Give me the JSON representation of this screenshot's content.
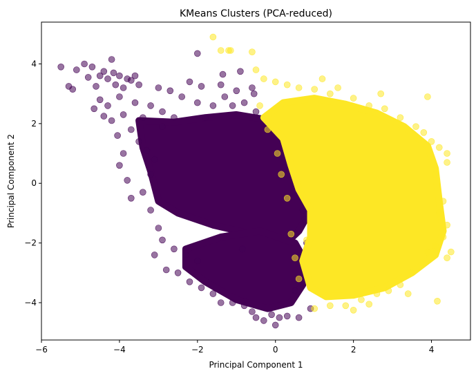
{
  "chart_data": {
    "type": "scatter",
    "title": "KMeans Clusters (PCA-reduced)",
    "xlabel": "Principal Component 1",
    "ylabel": "Principal Component 2",
    "xlim": [
      -6,
      5
    ],
    "ylim": [
      -5.25,
      5.4
    ],
    "xticks": [
      -6,
      -4,
      -2,
      0,
      2,
      4
    ],
    "yticks": [
      -4,
      -2,
      0,
      2,
      4
    ],
    "xtick_labels": [
      "−6",
      "−4",
      "−2",
      "0",
      "2",
      "4"
    ],
    "ytick_labels": [
      "−4",
      "−2",
      "0",
      "2",
      "4"
    ],
    "grid": false,
    "legend": "none",
    "marker_alpha": 0.55,
    "series": [
      {
        "color": "#440154",
        "points": [
          [
            -5.5,
            3.9
          ],
          [
            -5.3,
            3.25
          ],
          [
            -5.2,
            3.15
          ],
          [
            -5.1,
            3.8
          ],
          [
            -4.9,
            4.0
          ],
          [
            -4.8,
            3.55
          ],
          [
            -4.7,
            3.9
          ],
          [
            -4.6,
            3.25
          ],
          [
            -4.5,
            3.6
          ],
          [
            -4.4,
            3.75
          ],
          [
            -4.3,
            3.5
          ],
          [
            -4.2,
            4.15
          ],
          [
            -4.15,
            3.7
          ],
          [
            -4.1,
            3.3
          ],
          [
            -4.0,
            3.6
          ],
          [
            -3.9,
            3.2
          ],
          [
            -3.8,
            3.5
          ],
          [
            -3.7,
            3.45
          ],
          [
            -3.6,
            3.6
          ],
          [
            -3.5,
            3.3
          ],
          [
            -4.65,
            2.5
          ],
          [
            -4.5,
            2.8
          ],
          [
            -4.4,
            2.25
          ],
          [
            -4.3,
            2.6
          ],
          [
            -4.2,
            2.1
          ],
          [
            -4.05,
            1.6
          ],
          [
            -4.0,
            2.9
          ],
          [
            -3.9,
            2.3
          ],
          [
            -3.7,
            1.8
          ],
          [
            -3.6,
            2.7
          ],
          [
            -3.5,
            1.4
          ],
          [
            -3.4,
            2.2
          ],
          [
            -3.3,
            1.1
          ],
          [
            -3.2,
            2.6
          ],
          [
            -3.1,
            0.8
          ],
          [
            -3.0,
            3.2
          ],
          [
            -2.9,
            2.4
          ],
          [
            -2.7,
            3.1
          ],
          [
            -2.6,
            2.2
          ],
          [
            -2.4,
            2.9
          ],
          [
            -2.2,
            3.4
          ],
          [
            -2.0,
            2.7
          ],
          [
            -1.9,
            3.25
          ],
          [
            -1.8,
            2.2
          ],
          [
            -1.6,
            2.6
          ],
          [
            -1.4,
            3.3
          ],
          [
            -1.3,
            2.9
          ],
          [
            -1.1,
            2.6
          ],
          [
            -1.0,
            3.1
          ],
          [
            -0.8,
            2.7
          ],
          [
            -0.6,
            3.2
          ],
          [
            -0.5,
            2.4
          ],
          [
            -2.0,
            4.35
          ],
          [
            -1.35,
            3.65
          ],
          [
            -0.9,
            3.75
          ],
          [
            -0.55,
            3.0
          ],
          [
            -4.0,
            0.6
          ],
          [
            -3.8,
            0.1
          ],
          [
            -3.7,
            -0.5
          ],
          [
            -3.9,
            1.0
          ],
          [
            -3.4,
            -0.3
          ],
          [
            -3.2,
            -0.9
          ],
          [
            -3.0,
            -1.5
          ],
          [
            -2.9,
            -1.9
          ],
          [
            -2.6,
            -2.2
          ],
          [
            -2.3,
            -2.4
          ],
          [
            -2.0,
            -2.6
          ],
          [
            -3.1,
            -2.4
          ],
          [
            -2.8,
            -2.9
          ],
          [
            -2.5,
            -3.0
          ],
          [
            -2.2,
            -3.3
          ],
          [
            -1.9,
            -3.5
          ],
          [
            -1.6,
            -3.7
          ],
          [
            -1.4,
            -4.0
          ],
          [
            -1.1,
            -4.0
          ],
          [
            -0.8,
            -4.1
          ],
          [
            -0.6,
            -4.3
          ],
          [
            -0.5,
            -4.5
          ],
          [
            -0.3,
            -4.6
          ],
          [
            -0.1,
            -4.4
          ],
          [
            0.1,
            -4.5
          ],
          [
            0.3,
            -4.45
          ],
          [
            0.6,
            -4.5
          ],
          [
            0.0,
            -4.75
          ],
          [
            -0.85,
            -2.2
          ],
          [
            0.95,
            -0.5
          ],
          [
            0.7,
            -0.9
          ],
          [
            0.4,
            0.8
          ],
          [
            0.2,
            1.6
          ],
          [
            -0.2,
            2.1
          ],
          [
            0.8,
            -2.0
          ],
          [
            0.75,
            -1.2
          ],
          [
            0.5,
            -3.6
          ],
          [
            0.9,
            -4.2
          ],
          [
            -2.9,
            1.9
          ],
          [
            -3.2,
            0.3
          ]
        ],
        "blobs": [
          [
            [
              -3.5,
              2.1
            ],
            [
              -2.6,
              2.05
            ],
            [
              -1.8,
              2.2
            ],
            [
              -1.0,
              2.3
            ],
            [
              -0.3,
              2.15
            ],
            [
              0.2,
              1.5
            ],
            [
              0.4,
              0.6
            ],
            [
              0.6,
              -0.2
            ],
            [
              0.9,
              -0.9
            ],
            [
              0.6,
              -1.6
            ],
            [
              0.2,
              -2.1
            ],
            [
              -0.6,
              -1.7
            ],
            [
              -1.6,
              -1.4
            ],
            [
              -2.5,
              -1.0
            ],
            [
              -3.0,
              -0.6
            ],
            [
              -3.2,
              0.4
            ],
            [
              -3.4,
              1.2
            ]
          ],
          [
            [
              -2.3,
              -2.2
            ],
            [
              -1.4,
              -1.8
            ],
            [
              -0.4,
              -1.6
            ],
            [
              0.5,
              -2.0
            ],
            [
              0.8,
              -2.7
            ],
            [
              0.7,
              -3.4
            ],
            [
              0.4,
              -4.0
            ],
            [
              -0.2,
              -4.2
            ],
            [
              -1.0,
              -3.9
            ],
            [
              -1.8,
              -3.3
            ],
            [
              -2.3,
              -2.8
            ]
          ]
        ]
      },
      {
        "color": "#fde725",
        "points": [
          [
            -1.6,
            4.9
          ],
          [
            -1.4,
            4.45
          ],
          [
            -1.2,
            4.45
          ],
          [
            -1.15,
            4.45
          ],
          [
            -0.6,
            4.4
          ],
          [
            -0.5,
            3.8
          ],
          [
            -0.3,
            3.5
          ],
          [
            0.0,
            3.4
          ],
          [
            0.3,
            3.3
          ],
          [
            0.6,
            3.2
          ],
          [
            1.0,
            3.15
          ],
          [
            1.4,
            3.0
          ],
          [
            1.6,
            3.2
          ],
          [
            2.0,
            2.85
          ],
          [
            2.4,
            2.6
          ],
          [
            2.8,
            2.5
          ],
          [
            3.2,
            2.2
          ],
          [
            3.6,
            1.9
          ],
          [
            3.8,
            1.7
          ],
          [
            4.0,
            1.4
          ],
          [
            4.2,
            1.2
          ],
          [
            4.4,
            1.0
          ],
          [
            4.4,
            0.7
          ],
          [
            4.1,
            0.3
          ],
          [
            4.3,
            -0.6
          ],
          [
            4.2,
            -1.0
          ],
          [
            4.4,
            -1.4
          ],
          [
            4.3,
            -1.8
          ],
          [
            4.5,
            -2.3
          ],
          [
            4.4,
            -2.5
          ],
          [
            4.1,
            -2.1
          ],
          [
            3.9,
            -2.3
          ],
          [
            3.5,
            -3.0
          ],
          [
            3.2,
            -3.4
          ],
          [
            2.9,
            -3.6
          ],
          [
            2.6,
            -3.7
          ],
          [
            2.2,
            -3.9
          ],
          [
            1.8,
            -4.1
          ],
          [
            1.4,
            -4.1
          ],
          [
            1.0,
            -4.2
          ],
          [
            2.0,
            -4.25
          ],
          [
            4.15,
            -3.95
          ],
          [
            3.4,
            -3.7
          ],
          [
            2.4,
            -4.05
          ],
          [
            0.6,
            -3.2
          ],
          [
            0.5,
            -2.5
          ],
          [
            0.4,
            -1.7
          ],
          [
            0.8,
            -1.9
          ],
          [
            0.3,
            -0.5
          ],
          [
            0.15,
            0.3
          ],
          [
            0.05,
            1.0
          ],
          [
            -0.2,
            1.8
          ],
          [
            -0.4,
            2.6
          ],
          [
            3.9,
            2.9
          ],
          [
            2.7,
            3.0
          ],
          [
            1.2,
            3.5
          ]
        ],
        "blobs": [
          [
            [
              -0.3,
              2.2
            ],
            [
              0.2,
              2.7
            ],
            [
              1.0,
              2.85
            ],
            [
              1.8,
              2.65
            ],
            [
              2.6,
              2.35
            ],
            [
              3.3,
              1.9
            ],
            [
              3.9,
              1.25
            ],
            [
              4.1,
              0.5
            ],
            [
              4.2,
              -0.6
            ],
            [
              4.3,
              -1.6
            ],
            [
              4.1,
              -2.4
            ],
            [
              3.5,
              -3.0
            ],
            [
              2.8,
              -3.5
            ],
            [
              2.0,
              -3.75
            ],
            [
              1.3,
              -3.8
            ],
            [
              0.9,
              -3.5
            ],
            [
              0.7,
              -2.6
            ],
            [
              0.9,
              -1.8
            ],
            [
              0.9,
              -0.9
            ],
            [
              0.6,
              -0.2
            ],
            [
              0.4,
              0.6
            ],
            [
              0.2,
              1.5
            ]
          ]
        ]
      }
    ]
  }
}
